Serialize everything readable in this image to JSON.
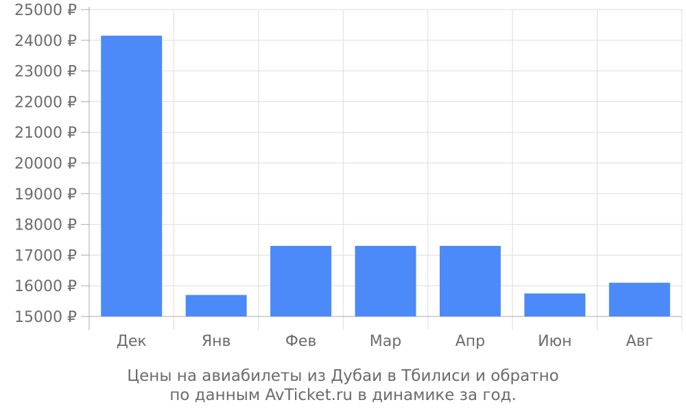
{
  "chart_data": {
    "type": "bar",
    "categories": [
      "Дек",
      "Янв",
      "Фев",
      "Мар",
      "Апр",
      "Июн",
      "Авг"
    ],
    "values": [
      24150,
      15700,
      17300,
      17300,
      17300,
      15750,
      16100
    ],
    "y_tick_values": [
      15000,
      16000,
      17000,
      18000,
      19000,
      20000,
      21000,
      22000,
      23000,
      24000,
      25000
    ],
    "y_tick_labels": [
      "15000 ₽",
      "16000 ₽",
      "17000 ₽",
      "18000 ₽",
      "19000 ₽",
      "20000 ₽",
      "21000 ₽",
      "22000 ₽",
      "23000 ₽",
      "24000 ₽",
      "25000 ₽"
    ],
    "ylim": [
      15000,
      25000
    ],
    "xlabel": "",
    "ylabel": "",
    "grid": true,
    "bar_color": "#4d8af9",
    "grid_color": "#dddddd",
    "axis_color": "#aaaaaa",
    "text_color": "#6b6b6b"
  },
  "caption": {
    "line1": "Цены на авиабилеты из Дубаи в Тбилиси и обратно",
    "line2": "по данным AvTicket.ru в динамике за год."
  }
}
